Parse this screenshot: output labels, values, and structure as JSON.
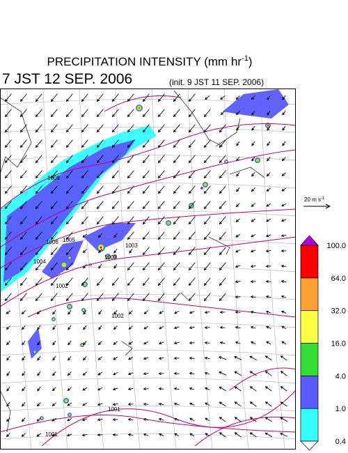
{
  "header": {
    "title": {
      "text": "PRECIPITATION INTENSITY (mm hr",
      "superscript": "-1",
      "close": ")"
    },
    "valid_time": "7 JST 12 SEP. 2006",
    "init_time": "(init. 9 JST 11 SEP. 2006)"
  },
  "wind_scale": {
    "text": "20 m s",
    "superscript": "-1"
  },
  "colorbar": {
    "levels": [
      "0.4",
      "1.0",
      "4.0",
      "16.0",
      "32.0",
      "64.0",
      "100.0"
    ],
    "colors": [
      "#33ffff",
      "#5a5aff",
      "#33dd33",
      "#ffff44",
      "#ffa033",
      "#ff0000"
    ],
    "over_color": "#b000e0",
    "under_color": "#ffffff"
  },
  "isobars": {
    "labels": [
      "1009",
      "1006",
      "1005",
      "1004",
      "1003",
      "1003",
      "1002",
      "1002",
      "1001",
      "1001"
    ]
  }
}
